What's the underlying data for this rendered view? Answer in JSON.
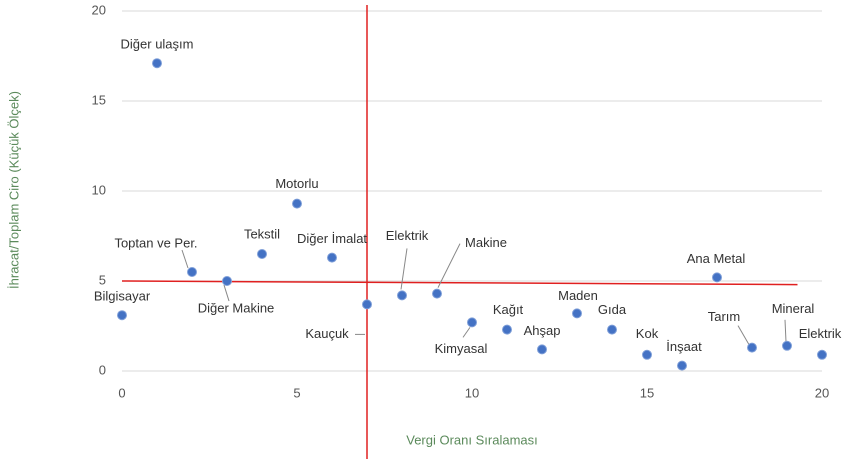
{
  "chart_data": {
    "type": "scatter",
    "xlabel": "Vergi Oranı Sıralaması",
    "ylabel": "İhracat/Toplam Ciro (Küçük Ölçek)",
    "labels": [
      "Bilgisayar",
      "Diğer ulaşım",
      "Toptan ve Per.",
      "Diğer Makine",
      "Tekstil",
      "Motorlu",
      "Diğer İmalat",
      "Kauçuk",
      "Elektrik",
      "Makine",
      "Kimyasal",
      "Kağıt",
      "Ahşap",
      "Maden",
      "Gıda",
      "Kok",
      "İnşaat",
      "Ana Metal",
      "Tarım",
      "Mineral",
      "Elektrik"
    ],
    "x": [
      0,
      1,
      2,
      3,
      4,
      5,
      6,
      7,
      8,
      9,
      10,
      11,
      12,
      13,
      14,
      15,
      16,
      17,
      18,
      19,
      20
    ],
    "y": [
      3.1,
      17.1,
      5.5,
      5.0,
      6.5,
      9.3,
      6.3,
      3.7,
      4.2,
      4.3,
      2.7,
      2.3,
      1.2,
      3.2,
      2.3,
      0.9,
      0.3,
      5.2,
      1.3,
      1.4,
      0.9
    ],
    "color": "#4472c4",
    "xlim": [
      0,
      20
    ],
    "ylim": [
      0,
      20
    ],
    "xticks": [
      0,
      5,
      10,
      15,
      20
    ],
    "yticks": [
      0,
      5,
      10,
      15,
      20
    ],
    "grid": true,
    "reference_lines": {
      "color": "#e02020",
      "vertical_x": 7,
      "horizontal": {
        "x": [
          0,
          19.3
        ],
        "y": [
          5.0,
          4.8
        ]
      }
    }
  }
}
